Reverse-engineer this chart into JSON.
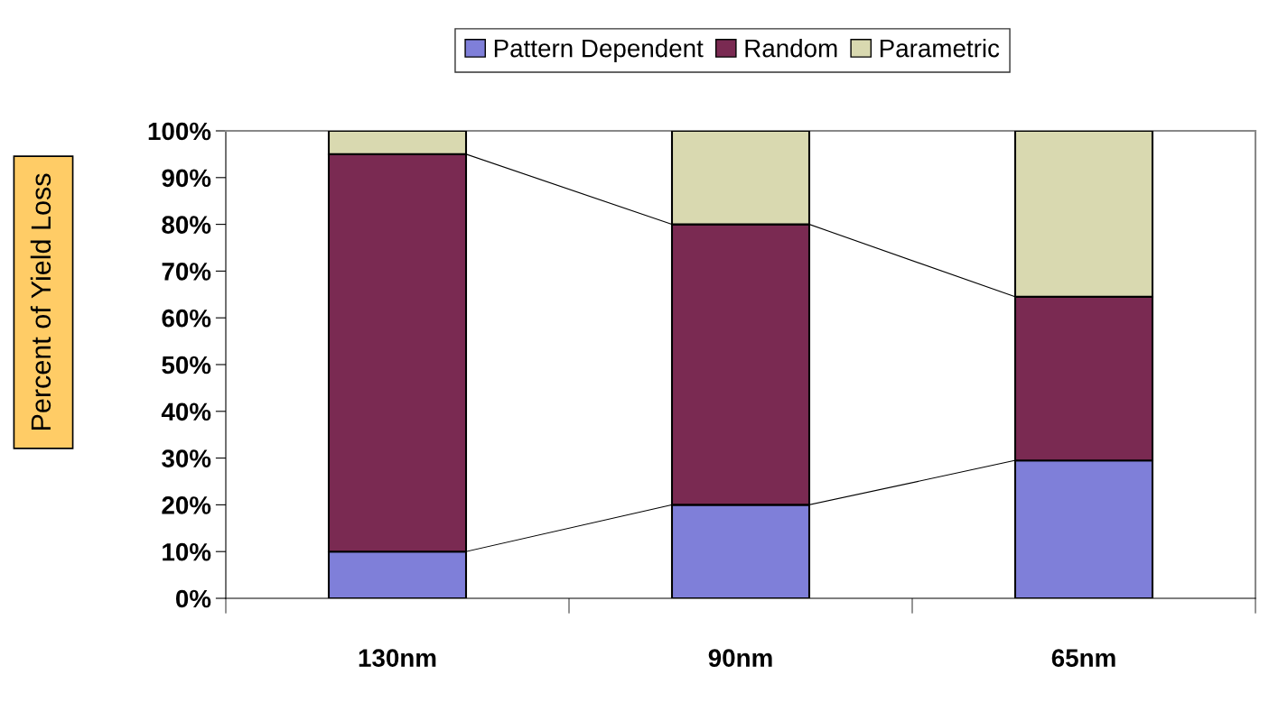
{
  "chart_data": {
    "type": "bar",
    "stacked": true,
    "ylabel": "Percent of Yield Loss",
    "categories": [
      "130nm",
      "90nm",
      "65nm"
    ],
    "series": [
      {
        "name": "Pattern Dependent",
        "color": "#7f7fd9",
        "values": [
          10,
          20,
          29.5
        ]
      },
      {
        "name": "Random",
        "color": "#7a2a52",
        "values": [
          85,
          60,
          35
        ]
      },
      {
        "name": "Parametric",
        "color": "#d9d9b0",
        "values": [
          5,
          20,
          35.5
        ]
      }
    ],
    "ylim": [
      0,
      100
    ],
    "yticks": [
      {
        "value": 0,
        "label": "0%"
      },
      {
        "value": 10,
        "label": "10%"
      },
      {
        "value": 20,
        "label": "20%"
      },
      {
        "value": 30,
        "label": "30%"
      },
      {
        "value": 40,
        "label": "40%"
      },
      {
        "value": 50,
        "label": "50%"
      },
      {
        "value": 60,
        "label": "60%"
      },
      {
        "value": 70,
        "label": "70%"
      },
      {
        "value": 80,
        "label": "80%"
      },
      {
        "value": 90,
        "label": "90%"
      },
      {
        "value": 100,
        "label": "100%"
      }
    ],
    "grid": false,
    "legend": "top"
  }
}
